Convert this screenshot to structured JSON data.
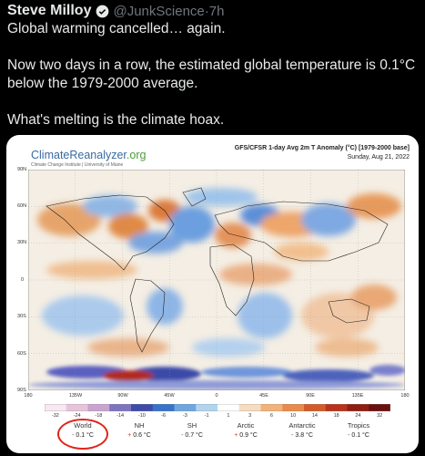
{
  "tweet": {
    "name": "Steve Milloy",
    "handle": "@JunkScience",
    "time": "·7h",
    "lines": [
      "Global warming cancelled… again.",
      "Now two days in a row, the estimated global temperature is 0.1°C",
      "below the 1979-2000 average.",
      "What's melting is the climate hoax."
    ]
  },
  "card": {
    "logo_part1": "ClimateReanalyzer",
    "logo_part2": ".org",
    "logo_sub": "Climate Change Institute | University of Maine",
    "title": "GFS/CFSR 1-day Avg 2m T Anomaly (°C) [1979-2000 base]",
    "date": "Sunday, Aug 21, 2022",
    "lat_labels": [
      "90N",
      "60N",
      "30N",
      "0",
      "30S",
      "60S",
      "90S"
    ],
    "lon_labels": [
      "180",
      "135W",
      "90W",
      "45W",
      "0",
      "45E",
      "90E",
      "135E",
      "180"
    ],
    "colorbar_labels": [
      "-32",
      "-24",
      "-18",
      "-14",
      "-10",
      "-6",
      "-3",
      "-1",
      "1",
      "3",
      "6",
      "10",
      "14",
      "18",
      "24",
      "32"
    ],
    "colorbar_colors": [
      "#f7e8f2",
      "#e8c4dc",
      "#c9a4cf",
      "#7d74c1",
      "#3f4ba8",
      "#3973c9",
      "#6ea6e0",
      "#b1d4ef",
      "#ffffff",
      "#f8dcc0",
      "#f2b27a",
      "#e98a4a",
      "#d45a2a",
      "#b8321c",
      "#8e1e12",
      "#6a1010"
    ],
    "stats": [
      {
        "name": "World",
        "sign": "-",
        "value": "0.1 °C"
      },
      {
        "name": "NH",
        "sign": "+",
        "value": "0.6 °C"
      },
      {
        "name": "SH",
        "sign": "-",
        "value": "0.7 °C"
      },
      {
        "name": "Arctic",
        "sign": "+",
        "value": "0.9 °C"
      },
      {
        "name": "Antarctic",
        "sign": "-",
        "value": "3.8 °C"
      },
      {
        "name": "Tropics",
        "sign": "-",
        "value": "0.1 °C"
      }
    ]
  }
}
